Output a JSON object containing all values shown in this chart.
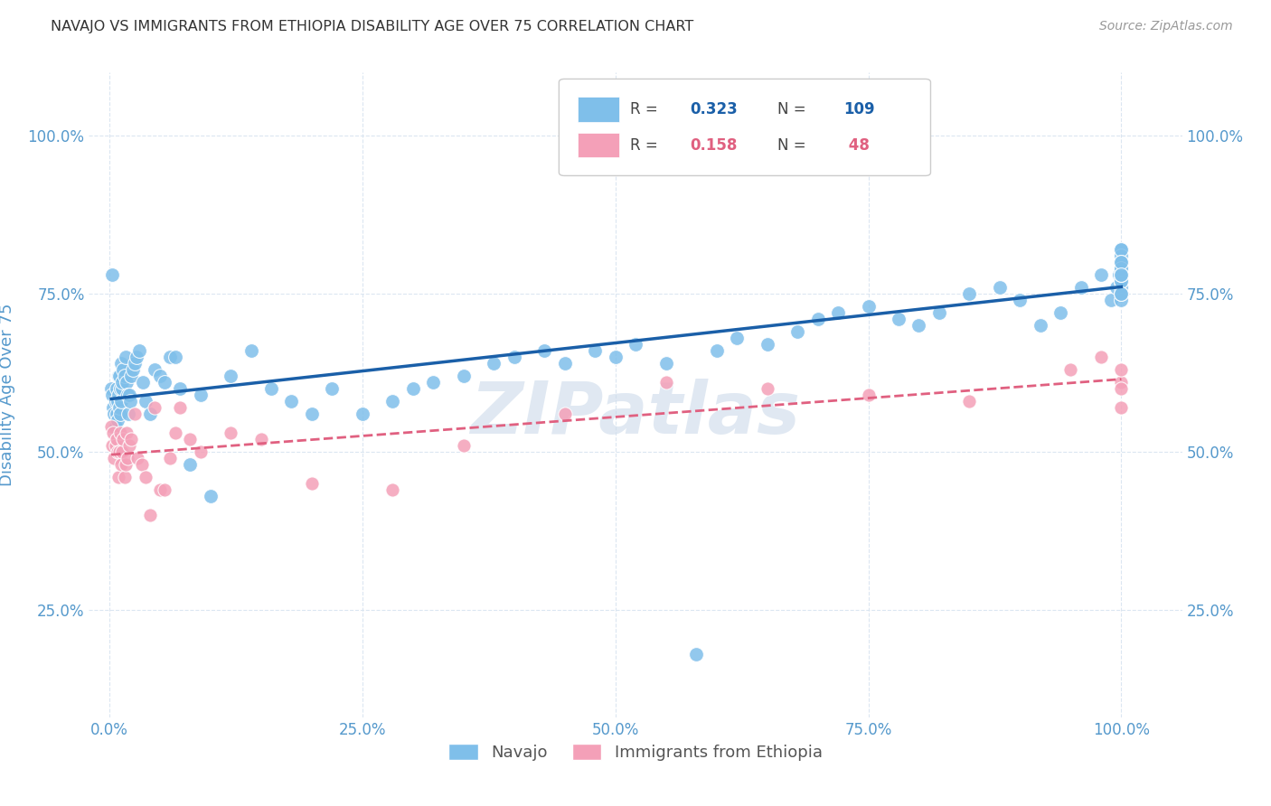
{
  "title": "NAVAJO VS IMMIGRANTS FROM ETHIOPIA DISABILITY AGE OVER 75 CORRELATION CHART",
  "source": "Source: ZipAtlas.com",
  "ylabel": "Disability Age Over 75",
  "watermark": "ZIPatlas",
  "navajo_color": "#7fbfea",
  "ethiopia_color": "#f4a0b8",
  "navajo_line_color": "#1a5fa8",
  "ethiopia_line_color": "#e06080",
  "tick_color": "#5599cc",
  "grid_color": "#d8e4f0",
  "navajo_x": [
    0.002,
    0.003,
    0.003,
    0.004,
    0.005,
    0.006,
    0.006,
    0.007,
    0.007,
    0.008,
    0.008,
    0.009,
    0.009,
    0.01,
    0.01,
    0.011,
    0.011,
    0.012,
    0.012,
    0.013,
    0.013,
    0.014,
    0.015,
    0.016,
    0.017,
    0.018,
    0.019,
    0.02,
    0.021,
    0.022,
    0.023,
    0.025,
    0.027,
    0.03,
    0.033,
    0.036,
    0.04,
    0.045,
    0.05,
    0.055,
    0.06,
    0.065,
    0.07,
    0.08,
    0.09,
    0.1,
    0.12,
    0.14,
    0.16,
    0.18,
    0.2,
    0.22,
    0.25,
    0.28,
    0.3,
    0.32,
    0.35,
    0.38,
    0.4,
    0.43,
    0.45,
    0.48,
    0.5,
    0.52,
    0.55,
    0.58,
    0.6,
    0.62,
    0.65,
    0.68,
    0.7,
    0.72,
    0.75,
    0.78,
    0.8,
    0.82,
    0.85,
    0.88,
    0.9,
    0.92,
    0.94,
    0.96,
    0.98,
    0.99,
    0.995,
    0.998,
    1.0,
    1.0,
    1.0,
    1.0,
    1.0,
    1.0,
    1.0,
    1.0,
    1.0,
    1.0,
    1.0,
    1.0,
    1.0,
    1.0,
    1.0,
    1.0,
    1.0,
    1.0,
    1.0,
    1.0,
    1.0,
    1.0,
    1.0
  ],
  "navajo_y": [
    0.6,
    0.59,
    0.78,
    0.57,
    0.56,
    0.58,
    0.54,
    0.56,
    0.6,
    0.55,
    0.58,
    0.62,
    0.59,
    0.57,
    0.62,
    0.56,
    0.6,
    0.64,
    0.58,
    0.6,
    0.61,
    0.63,
    0.62,
    0.65,
    0.61,
    0.59,
    0.56,
    0.59,
    0.58,
    0.62,
    0.63,
    0.64,
    0.65,
    0.66,
    0.61,
    0.58,
    0.56,
    0.63,
    0.62,
    0.61,
    0.65,
    0.65,
    0.6,
    0.48,
    0.59,
    0.43,
    0.62,
    0.66,
    0.6,
    0.58,
    0.56,
    0.6,
    0.56,
    0.58,
    0.6,
    0.61,
    0.62,
    0.64,
    0.65,
    0.66,
    0.64,
    0.66,
    0.65,
    0.67,
    0.64,
    0.18,
    0.66,
    0.68,
    0.67,
    0.69,
    0.71,
    0.72,
    0.73,
    0.71,
    0.7,
    0.72,
    0.75,
    0.76,
    0.74,
    0.7,
    0.72,
    0.76,
    0.78,
    0.74,
    0.76,
    0.78,
    0.8,
    0.79,
    0.77,
    0.78,
    0.8,
    0.82,
    0.79,
    0.76,
    0.74,
    0.77,
    0.78,
    0.8,
    0.81,
    0.82,
    0.8,
    0.78,
    0.77,
    0.79,
    0.75,
    0.78,
    0.8,
    0.78,
    0.75
  ],
  "ethiopia_x": [
    0.002,
    0.003,
    0.004,
    0.005,
    0.006,
    0.007,
    0.008,
    0.009,
    0.01,
    0.011,
    0.012,
    0.013,
    0.014,
    0.015,
    0.016,
    0.017,
    0.018,
    0.02,
    0.022,
    0.025,
    0.028,
    0.032,
    0.036,
    0.04,
    0.045,
    0.05,
    0.055,
    0.06,
    0.065,
    0.07,
    0.08,
    0.09,
    0.12,
    0.15,
    0.2,
    0.28,
    0.35,
    0.45,
    0.55,
    0.65,
    0.75,
    0.85,
    0.95,
    0.98,
    1.0,
    1.0,
    1.0,
    1.0
  ],
  "ethiopia_y": [
    0.54,
    0.51,
    0.53,
    0.49,
    0.51,
    0.52,
    0.5,
    0.46,
    0.5,
    0.53,
    0.48,
    0.5,
    0.52,
    0.46,
    0.48,
    0.53,
    0.49,
    0.51,
    0.52,
    0.56,
    0.49,
    0.48,
    0.46,
    0.4,
    0.57,
    0.44,
    0.44,
    0.49,
    0.53,
    0.57,
    0.52,
    0.5,
    0.53,
    0.52,
    0.45,
    0.44,
    0.51,
    0.56,
    0.61,
    0.6,
    0.59,
    0.58,
    0.63,
    0.65,
    0.57,
    0.61,
    0.63,
    0.6
  ],
  "xticks": [
    0.0,
    0.25,
    0.5,
    0.75,
    1.0
  ],
  "xticklabels": [
    "0.0%",
    "25.0%",
    "50.0%",
    "75.0%",
    "100.0%"
  ],
  "ytick_positions": [
    0.25,
    0.5,
    0.75,
    1.0
  ],
  "yticklabels": [
    "25.0%",
    "50.0%",
    "75.0%",
    "100.0%"
  ],
  "xlim": [
    -0.02,
    1.06
  ],
  "ylim": [
    0.08,
    1.1
  ]
}
